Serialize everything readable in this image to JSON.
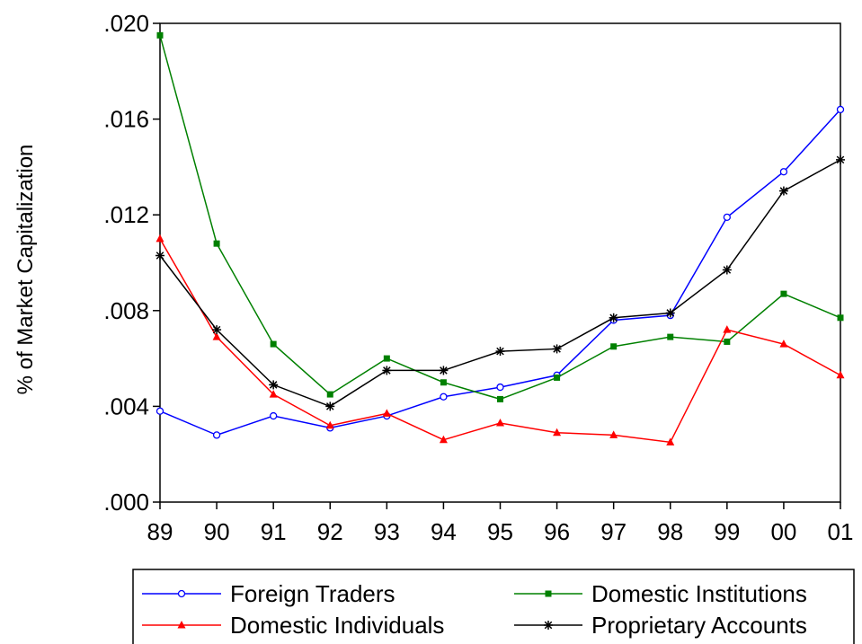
{
  "chart_data": {
    "type": "line",
    "title": "",
    "xlabel": "",
    "ylabel": "% of Market Capitalization",
    "categories": [
      "89",
      "90",
      "91",
      "92",
      "93",
      "94",
      "95",
      "96",
      "97",
      "98",
      "99",
      "00",
      "01"
    ],
    "ylim": [
      0.0,
      0.02
    ],
    "yticks": [
      0.0,
      0.004,
      0.008,
      0.012,
      0.016,
      0.02
    ],
    "ytick_labels": [
      ".000",
      ".004",
      ".008",
      ".012",
      ".016",
      ".020"
    ],
    "grid": false,
    "legend_position": "bottom",
    "series": [
      {
        "name": "Foreign Traders",
        "color": "#0000ff",
        "marker": "open-circle",
        "values": [
          0.0038,
          0.0028,
          0.0036,
          0.0031,
          0.0036,
          0.0044,
          0.0048,
          0.0053,
          0.0076,
          0.0078,
          0.0119,
          0.0138,
          0.0164
        ]
      },
      {
        "name": "Domestic Institutions",
        "color": "#008000",
        "marker": "filled-square",
        "values": [
          0.0195,
          0.0108,
          0.0066,
          0.0045,
          0.006,
          0.005,
          0.0043,
          0.0052,
          0.0065,
          0.0069,
          0.0067,
          0.0087,
          0.0077
        ]
      },
      {
        "name": "Domestic Individuals",
        "color": "#ff0000",
        "marker": "filled-triangle",
        "values": [
          0.011,
          0.0069,
          0.0045,
          0.0032,
          0.0037,
          0.0026,
          0.0033,
          0.0029,
          0.0028,
          0.0025,
          0.0072,
          0.0066,
          0.0053
        ]
      },
      {
        "name": "Proprietary Accounts",
        "color": "#000000",
        "marker": "asterisk",
        "values": [
          0.0103,
          0.0072,
          0.0049,
          0.004,
          0.0055,
          0.0055,
          0.0063,
          0.0064,
          0.0077,
          0.0079,
          0.0097,
          0.013,
          0.0143
        ]
      }
    ],
    "legend_order": [
      "Foreign Traders",
      "Domestic Institutions",
      "Domestic Individuals",
      "Proprietary Accounts"
    ]
  }
}
